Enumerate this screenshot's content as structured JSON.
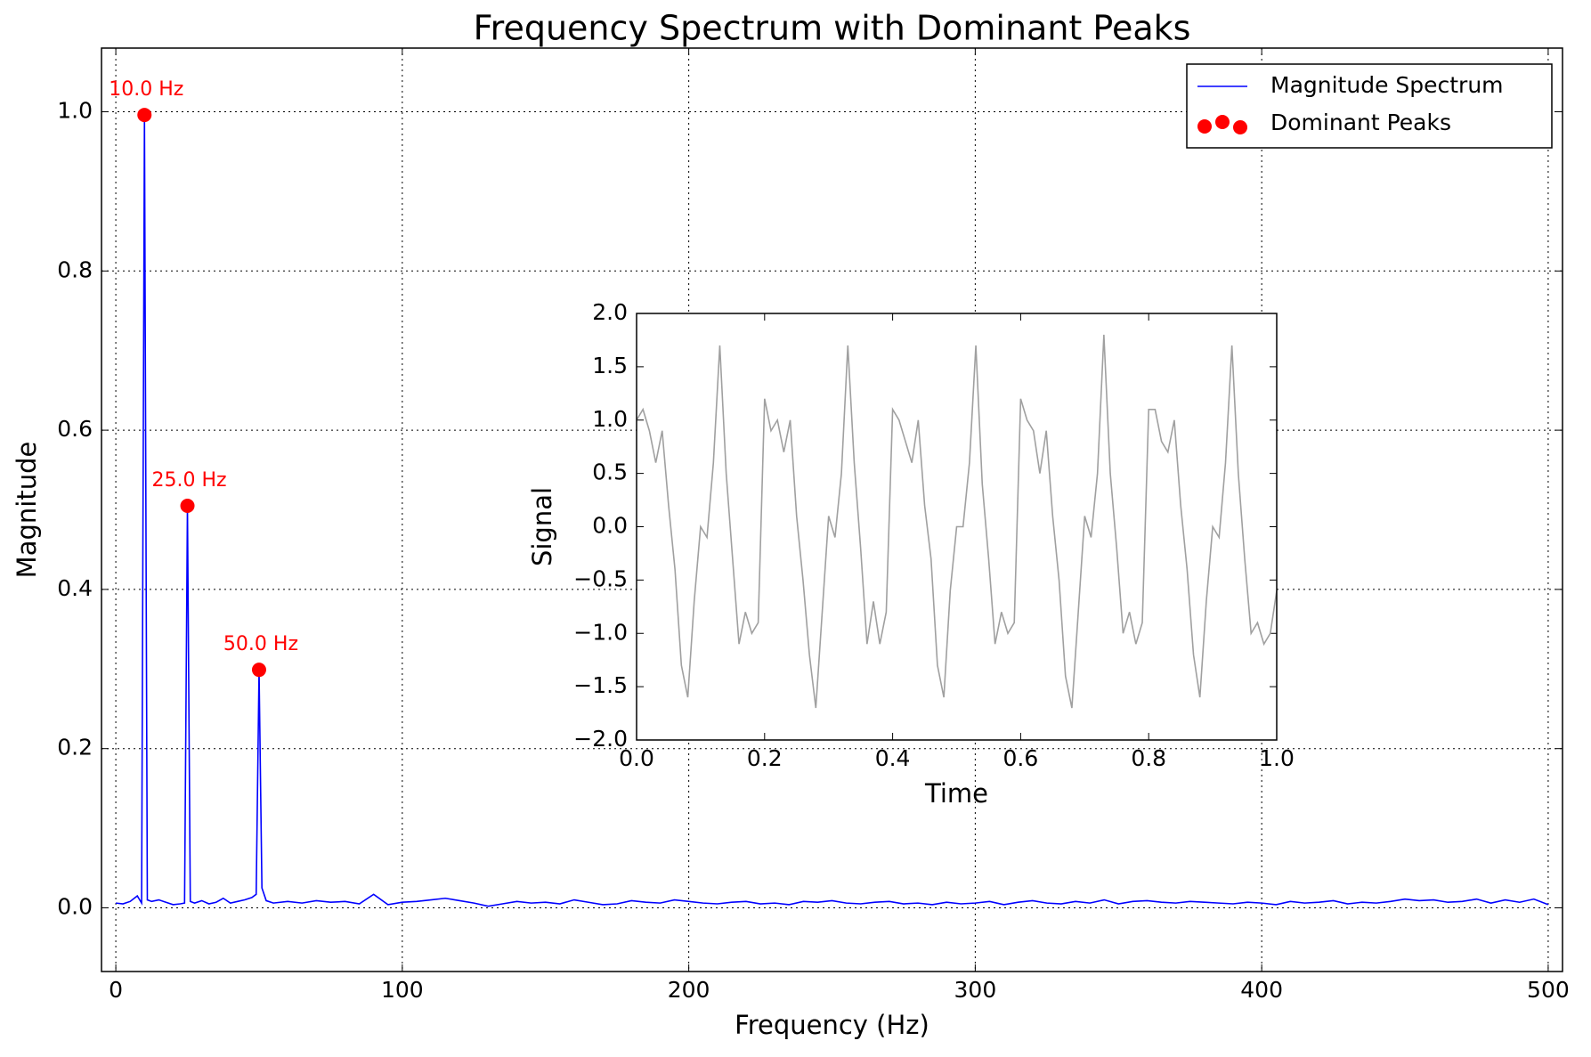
{
  "chart_data": [
    {
      "type": "line",
      "title": "Frequency Spectrum with Dominant Peaks",
      "x_label": "Frequency (Hz)",
      "y_label": "Magnitude",
      "xlim": [
        -5,
        505
      ],
      "ylim": [
        -0.08,
        1.08
      ],
      "xticks": [
        0,
        100,
        200,
        300,
        400,
        500
      ],
      "yticks": [
        {
          "value": 0,
          "label": "0.0"
        },
        0.2,
        0.4,
        0.6,
        0.8,
        {
          "value": 1,
          "label": "1.0"
        }
      ],
      "grid": true,
      "legend": "upper right",
      "series": [
        {
          "name": "Magnitude Spectrum",
          "type": "line",
          "color": "#0000ff",
          "x": [
            0,
            2.5,
            5,
            7.5,
            9,
            10,
            11,
            12.5,
            15,
            17.5,
            20,
            22.5,
            24,
            25,
            26,
            27.5,
            30,
            32.5,
            35,
            37.5,
            40,
            42.5,
            45,
            47.5,
            49,
            50,
            51,
            52.5,
            55,
            60,
            65,
            70,
            75,
            80,
            85,
            90,
            95,
            100,
            105,
            110,
            115,
            120,
            125,
            130,
            135,
            140,
            145,
            150,
            155,
            160,
            165,
            170,
            175,
            180,
            185,
            190,
            195,
            200,
            205,
            210,
            215,
            220,
            225,
            230,
            235,
            240,
            245,
            250,
            255,
            260,
            265,
            270,
            275,
            280,
            285,
            290,
            295,
            300,
            305,
            310,
            315,
            320,
            325,
            330,
            335,
            340,
            345,
            350,
            355,
            360,
            365,
            370,
            375,
            380,
            385,
            390,
            395,
            400,
            405,
            410,
            415,
            420,
            425,
            430,
            435,
            440,
            445,
            450,
            455,
            460,
            465,
            470,
            475,
            480,
            485,
            490,
            495,
            500
          ],
          "values": [
            0.006,
            0.005,
            0.008,
            0.015,
            0.006,
            0.996,
            0.01,
            0.008,
            0.01,
            0.007,
            0.004,
            0.005,
            0.006,
            0.505,
            0.008,
            0.006,
            0.009,
            0.005,
            0.007,
            0.012,
            0.006,
            0.008,
            0.01,
            0.013,
            0.017,
            0.299,
            0.025,
            0.009,
            0.006,
            0.008,
            0.006,
            0.009,
            0.007,
            0.008,
            0.005,
            0.017,
            0.004,
            0.007,
            0.008,
            0.01,
            0.012,
            0.009,
            0.006,
            0.002,
            0.005,
            0.008,
            0.006,
            0.007,
            0.005,
            0.01,
            0.007,
            0.004,
            0.005,
            0.009,
            0.007,
            0.006,
            0.01,
            0.008,
            0.006,
            0.005,
            0.007,
            0.008,
            0.005,
            0.006,
            0.004,
            0.008,
            0.007,
            0.009,
            0.006,
            0.005,
            0.007,
            0.008,
            0.005,
            0.006,
            0.004,
            0.007,
            0.005,
            0.006,
            0.008,
            0.004,
            0.007,
            0.009,
            0.006,
            0.005,
            0.008,
            0.006,
            0.01,
            0.005,
            0.008,
            0.009,
            0.007,
            0.006,
            0.008,
            0.007,
            0.006,
            0.005,
            0.007,
            0.006,
            0.004,
            0.008,
            0.006,
            0.007,
            0.009,
            0.005,
            0.007,
            0.006,
            0.008,
            0.011,
            0.009,
            0.01,
            0.007,
            0.008,
            0.011,
            0.006,
            0.01,
            0.007,
            0.011,
            0.004
          ]
        },
        {
          "name": "Dominant Peaks",
          "type": "scatter",
          "color": "#ff0000",
          "x": [
            10,
            25,
            50
          ],
          "values": [
            0.996,
            0.505,
            0.299
          ]
        }
      ],
      "annotations": [
        "10.0 Hz",
        "25.0 Hz",
        "50.0 Hz"
      ]
    },
    {
      "type": "line",
      "x_label": "Time",
      "y_label": "Signal",
      "xlim": [
        0,
        1
      ],
      "ylim": [
        -2,
        2
      ],
      "xticks": [
        {
          "value": 0,
          "label": "0.0"
        },
        0.2,
        0.4,
        0.6,
        0.8,
        {
          "value": 1,
          "label": "1.0"
        }
      ],
      "yticks": [
        {
          "value": 2,
          "label": "2.0"
        },
        1.5,
        {
          "value": 1,
          "label": "1.0"
        },
        0.5,
        {
          "value": 0,
          "label": "0.0"
        },
        {
          "value": -0.5,
          "label": "−0.5"
        },
        {
          "value": -1,
          "label": "−1.0"
        },
        {
          "value": -1.5,
          "label": "−1.5"
        },
        {
          "value": -2,
          "label": "−2.0"
        }
      ],
      "grid": false,
      "series": [
        {
          "type": "line",
          "color": "#a0a0a0",
          "x": [
            0,
            0.01,
            0.02,
            0.03,
            0.04,
            0.05,
            0.06,
            0.07,
            0.08,
            0.09,
            0.1,
            0.11,
            0.12,
            0.13,
            0.14,
            0.15,
            0.16,
            0.17,
            0.18,
            0.19,
            0.2,
            0.21,
            0.22,
            0.23,
            0.24,
            0.25,
            0.26,
            0.27,
            0.28,
            0.29,
            0.3,
            0.31,
            0.32,
            0.33,
            0.34,
            0.35,
            0.36,
            0.37,
            0.38,
            0.39,
            0.4,
            0.41,
            0.42,
            0.43,
            0.44,
            0.45,
            0.46,
            0.47,
            0.48,
            0.49,
            0.5,
            0.51,
            0.52,
            0.53,
            0.54,
            0.55,
            0.56,
            0.57,
            0.58,
            0.59,
            0.6,
            0.61,
            0.62,
            0.63,
            0.64,
            0.65,
            0.66,
            0.67,
            0.68,
            0.69,
            0.7,
            0.71,
            0.72,
            0.73,
            0.74,
            0.75,
            0.76,
            0.77,
            0.78,
            0.79,
            0.8,
            0.81,
            0.82,
            0.83,
            0.84,
            0.85,
            0.86,
            0.87,
            0.88,
            0.89,
            0.9,
            0.91,
            0.92,
            0.93,
            0.94,
            0.95,
            0.96,
            0.97,
            0.98,
            0.99,
            1
          ],
          "values": [
            1.0,
            1.1,
            0.9,
            0.6,
            0.9,
            0.2,
            -0.4,
            -1.3,
            -1.6,
            -0.7,
            0.0,
            -0.1,
            0.6,
            1.7,
            0.5,
            -0.3,
            -1.1,
            -0.8,
            -1.0,
            -0.9,
            1.2,
            0.9,
            1.0,
            0.7,
            1.0,
            0.1,
            -0.5,
            -1.2,
            -1.7,
            -0.8,
            0.1,
            -0.1,
            0.5,
            1.7,
            0.6,
            -0.2,
            -1.1,
            -0.7,
            -1.1,
            -0.8,
            1.1,
            1.0,
            0.8,
            0.6,
            1.0,
            0.2,
            -0.3,
            -1.3,
            -1.6,
            -0.6,
            0.0,
            0.0,
            0.6,
            1.7,
            0.4,
            -0.3,
            -1.1,
            -0.8,
            -1.0,
            -0.9,
            1.2,
            1.0,
            0.9,
            0.5,
            0.9,
            0.1,
            -0.5,
            -1.4,
            -1.7,
            -0.8,
            0.1,
            -0.1,
            0.5,
            1.8,
            0.5,
            -0.2,
            -1.0,
            -0.8,
            -1.1,
            -0.9,
            1.1,
            1.1,
            0.8,
            0.7,
            1.0,
            0.2,
            -0.4,
            -1.2,
            -1.6,
            -0.7,
            0.0,
            -0.1,
            0.6,
            1.7,
            0.5,
            -0.3,
            -1.0,
            -0.9,
            -1.1,
            -1.0,
            -0.6
          ]
        }
      ]
    }
  ]
}
